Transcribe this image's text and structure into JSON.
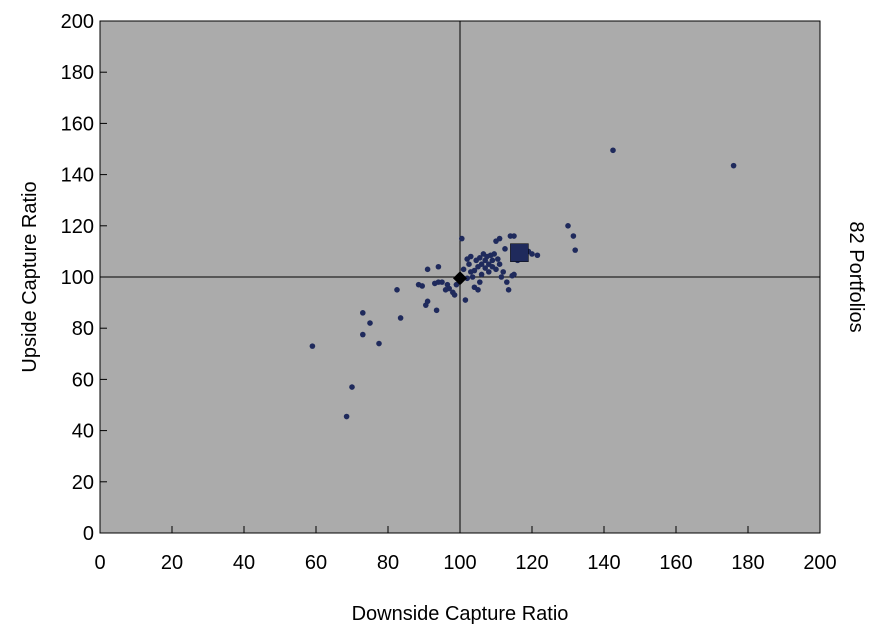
{
  "chart_data": {
    "type": "scatter",
    "xlabel": "Downside Capture Ratio",
    "ylabel": "Upside Capture Ratio",
    "side_label": "82 Portfolios",
    "xlim": [
      0,
      200
    ],
    "ylim": [
      0,
      200
    ],
    "xticks": [
      0,
      20,
      40,
      60,
      80,
      100,
      120,
      140,
      160,
      180,
      200
    ],
    "yticks": [
      0,
      20,
      40,
      60,
      80,
      100,
      120,
      140,
      160,
      180,
      200
    ],
    "reference_lines": {
      "x": 100,
      "y": 100
    },
    "grid": false,
    "plot_background": "#ababab",
    "series": [
      {
        "marker": "dot",
        "color": "#1f2a5c",
        "points": [
          [
            59,
            73
          ],
          [
            68.5,
            45.5
          ],
          [
            70,
            57
          ],
          [
            73,
            86
          ],
          [
            73,
            77.5
          ],
          [
            75,
            82
          ],
          [
            77.5,
            74
          ],
          [
            82.5,
            95
          ],
          [
            83.5,
            84
          ],
          [
            88.5,
            97
          ],
          [
            89.5,
            96.5
          ],
          [
            90.5,
            89
          ],
          [
            91,
            90.5
          ],
          [
            91,
            103
          ],
          [
            93,
            97.5
          ],
          [
            93.5,
            87
          ],
          [
            94,
            98
          ],
          [
            94,
            104
          ],
          [
            95,
            98
          ],
          [
            96.5,
            97
          ],
          [
            97,
            95.5
          ],
          [
            98,
            94
          ],
          [
            98.5,
            93
          ],
          [
            99,
            97
          ],
          [
            100,
            99
          ],
          [
            100.5,
            115
          ],
          [
            101,
            103
          ],
          [
            101.5,
            91
          ],
          [
            102,
            99.5
          ],
          [
            102,
            107
          ],
          [
            102.5,
            105
          ],
          [
            103,
            108
          ],
          [
            103,
            102
          ],
          [
            103.5,
            100
          ],
          [
            104,
            96
          ],
          [
            104.5,
            106.5
          ],
          [
            105,
            95
          ],
          [
            105,
            104
          ],
          [
            105.5,
            98
          ],
          [
            105.5,
            107.5
          ],
          [
            106,
            101
          ],
          [
            106,
            105
          ],
          [
            106.5,
            109
          ],
          [
            107,
            103.5
          ],
          [
            107,
            106.5
          ],
          [
            107.5,
            108
          ],
          [
            108,
            102
          ],
          [
            108,
            105
          ],
          [
            108.5,
            108.5
          ],
          [
            109,
            104
          ],
          [
            109,
            106.5
          ],
          [
            109.5,
            109
          ],
          [
            110,
            103
          ],
          [
            110,
            114
          ],
          [
            110.5,
            107
          ],
          [
            111,
            105
          ],
          [
            111,
            115
          ],
          [
            111.5,
            100
          ],
          [
            112,
            102
          ],
          [
            112.5,
            111
          ],
          [
            113,
            98
          ],
          [
            113.5,
            95
          ],
          [
            114,
            116
          ],
          [
            114.5,
            100.5
          ],
          [
            115,
            101
          ],
          [
            115,
            116
          ],
          [
            116,
            106.5
          ],
          [
            116.5,
            108
          ],
          [
            117,
            110
          ],
          [
            118,
            112
          ],
          [
            119,
            110
          ],
          [
            120,
            109
          ],
          [
            121.5,
            108.5
          ],
          [
            130,
            120
          ],
          [
            131.5,
            116
          ],
          [
            132,
            110.5
          ],
          [
            142.5,
            149.5
          ],
          [
            176,
            143.5
          ],
          [
            96,
            95
          ],
          [
            104,
            102.5
          ]
        ]
      },
      {
        "marker": "square",
        "color": "#1f2a5c",
        "points": [
          [
            116.5,
            109.5
          ]
        ]
      },
      {
        "marker": "diamond",
        "color": "#000000",
        "points": [
          [
            100,
            99.5
          ]
        ]
      }
    ]
  }
}
